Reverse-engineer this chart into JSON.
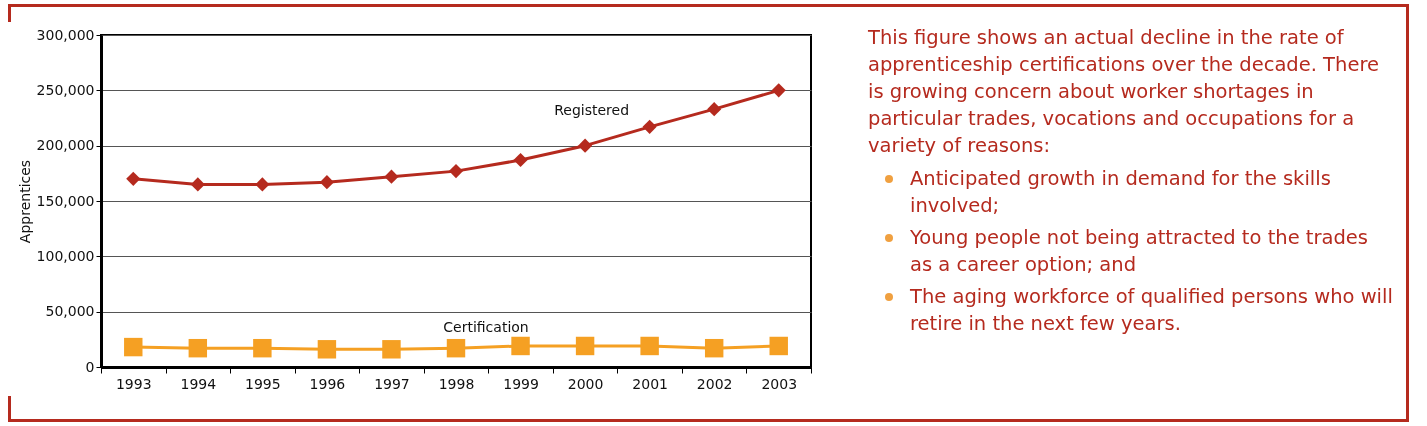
{
  "chart_data": {
    "type": "line",
    "ylabel": "Apprentices",
    "categories": [
      "1993",
      "1994",
      "1995",
      "1996",
      "1997",
      "1998",
      "1999",
      "2000",
      "2001",
      "2002",
      "2003"
    ],
    "series": [
      {
        "name": "Registered",
        "color": "#b52a1e",
        "marker": "diamond",
        "values": [
          170000,
          165000,
          165000,
          167000,
          172000,
          177000,
          187000,
          200000,
          217000,
          233000,
          250000
        ]
      },
      {
        "name": "Certification",
        "color": "#f5a023",
        "marker": "square",
        "values": [
          18000,
          17000,
          17000,
          16000,
          16000,
          17000,
          19000,
          19000,
          19000,
          17000,
          19000
        ]
      }
    ],
    "ylim": [
      0,
      300000
    ],
    "yticks": [
      0,
      {
        "value": 50000,
        "label": "50,000"
      },
      {
        "value": 100000,
        "label": "100,000"
      },
      {
        "value": 150000,
        "label": "150,000"
      },
      {
        "value": 200000,
        "label": "200,000"
      },
      {
        "value": 250000,
        "label": "250,000"
      },
      {
        "value": 300000,
        "label": "300,000"
      }
    ],
    "grid": "y",
    "legend": false,
    "annotations": [
      "This figure shows an actual decline in the rate of apprenticeship certifications over the decade. There is growing concern about worker shortages in particular trades, vocations and occupations for a variety of reasons:",
      "Anticipated growth in demand for the skills involved;",
      "Young people not being attracted to the trades as a career option; and",
      "The aging workforce of qualified persons who will retire in the next few years."
    ]
  }
}
